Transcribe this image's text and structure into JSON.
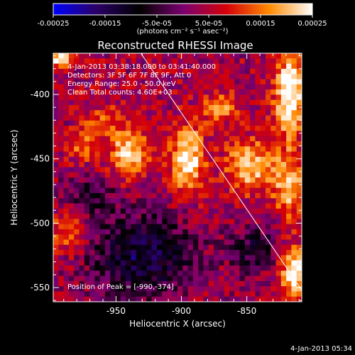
{
  "chart_data": {
    "type": "heatmap",
    "title": "Reconstructed RHESSI Image",
    "xlabel": "Heliocentric X (arcsec)",
    "ylabel": "Heliocentric Y (arcsec)",
    "xlim": [
      -998,
      -808
    ],
    "ylim": [
      -561,
      -368
    ],
    "x_ticks": [
      -950,
      -900,
      -850
    ],
    "y_ticks": [
      -550,
      -500,
      -450,
      -400
    ],
    "colorbar": {
      "min": -0.00025,
      "max": 0.00025,
      "tick_values": [
        -0.00025,
        -0.00015,
        -5e-05,
        5e-05,
        0.00015,
        0.00025
      ],
      "tick_labels": [
        "-0.00025",
        "-0.00015",
        "-5.0e-05",
        "5.0e-05",
        "0.00015",
        "0.00025"
      ],
      "unit": "(photons cm⁻² s⁻¹ asec⁻²)",
      "colors": [
        "#0000ff",
        "#2a0066",
        "#000000",
        "#7a0070",
        "#d4000a",
        "#ff8a00",
        "#ffffff"
      ]
    },
    "annotations": [
      "4-Jan-2013 03:38:18.000 to 03:41:40.000",
      "Detectors: 3F 5F 6F 7F 8F 9F, Att 0",
      "Energy Range: 25.0 - 50.0 keV",
      "Clean     Total counts: 4.60E+03"
    ],
    "peak_text": "Position of Peak = [-990,-374]",
    "limb_line": {
      "x": [
        -931,
        -808
      ],
      "y": [
        -368,
        -552
      ]
    },
    "sources": [
      {
        "x": -993,
        "y": -372,
        "sx": 5,
        "sy": 5,
        "amp": 0.00025
      },
      {
        "x": -940,
        "y": -445,
        "sx": 10,
        "sy": 13,
        "amp": 0.00019
      },
      {
        "x": -960,
        "y": -420,
        "sx": 10,
        "sy": 8,
        "amp": 0.0001
      },
      {
        "x": -895,
        "y": -450,
        "sx": 9,
        "sy": 18,
        "amp": 0.00021
      },
      {
        "x": -870,
        "y": -410,
        "sx": 10,
        "sy": 8,
        "amp": 0.00012
      },
      {
        "x": -848,
        "y": -455,
        "sx": 12,
        "sy": 14,
        "amp": 0.00018
      },
      {
        "x": -817,
        "y": -400,
        "sx": 8,
        "sy": 22,
        "amp": 0.00024
      },
      {
        "x": -818,
        "y": -470,
        "sx": 8,
        "sy": 18,
        "amp": 0.00017
      },
      {
        "x": -814,
        "y": -540,
        "sx": 7,
        "sy": 14,
        "amp": 0.00022
      },
      {
        "x": -985,
        "y": -505,
        "sx": 12,
        "sy": 12,
        "amp": 0.00012
      },
      {
        "x": -975,
        "y": -440,
        "sx": 8,
        "sy": 8,
        "amp": 0.00011
      },
      {
        "x": -930,
        "y": -525,
        "sx": 28,
        "sy": 22,
        "amp": -0.00018
      },
      {
        "x": -970,
        "y": -480,
        "sx": 14,
        "sy": 12,
        "amp": -0.0001
      },
      {
        "x": -845,
        "y": -520,
        "sx": 12,
        "sy": 14,
        "amp": -0.00012
      }
    ]
  },
  "footer": {
    "timestamp": "4-Jan-2013 05:34"
  }
}
